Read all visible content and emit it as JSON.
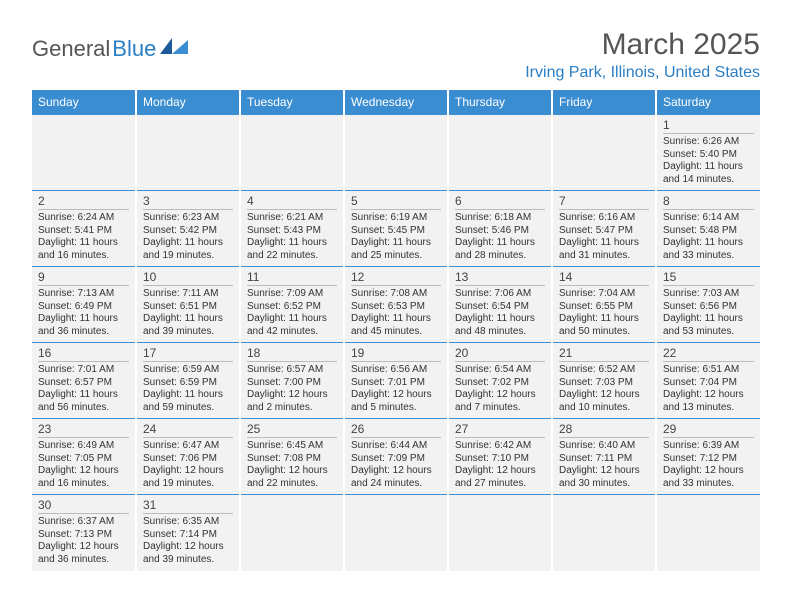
{
  "logo": {
    "general": "General",
    "blue": "Blue"
  },
  "title": "March 2025",
  "location": "Irving Park, Illinois, United States",
  "colors": {
    "header_bg": "#3a8dd0",
    "header_text": "#ffffff",
    "accent": "#2a7ec4",
    "cell_bg": "#f2f2f2",
    "text": "#333333",
    "muted": "#555555",
    "divider": "#bbbbbb"
  },
  "weekdays": [
    "Sunday",
    "Monday",
    "Tuesday",
    "Wednesday",
    "Thursday",
    "Friday",
    "Saturday"
  ],
  "layout": {
    "first_day_index": 6,
    "days_in_month": 31,
    "rows": 6
  },
  "days": {
    "1": {
      "sunrise": "6:26 AM",
      "sunset": "5:40 PM",
      "daylight": "11 hours and 14 minutes."
    },
    "2": {
      "sunrise": "6:24 AM",
      "sunset": "5:41 PM",
      "daylight": "11 hours and 16 minutes."
    },
    "3": {
      "sunrise": "6:23 AM",
      "sunset": "5:42 PM",
      "daylight": "11 hours and 19 minutes."
    },
    "4": {
      "sunrise": "6:21 AM",
      "sunset": "5:43 PM",
      "daylight": "11 hours and 22 minutes."
    },
    "5": {
      "sunrise": "6:19 AM",
      "sunset": "5:45 PM",
      "daylight": "11 hours and 25 minutes."
    },
    "6": {
      "sunrise": "6:18 AM",
      "sunset": "5:46 PM",
      "daylight": "11 hours and 28 minutes."
    },
    "7": {
      "sunrise": "6:16 AM",
      "sunset": "5:47 PM",
      "daylight": "11 hours and 31 minutes."
    },
    "8": {
      "sunrise": "6:14 AM",
      "sunset": "5:48 PM",
      "daylight": "11 hours and 33 minutes."
    },
    "9": {
      "sunrise": "7:13 AM",
      "sunset": "6:49 PM",
      "daylight": "11 hours and 36 minutes."
    },
    "10": {
      "sunrise": "7:11 AM",
      "sunset": "6:51 PM",
      "daylight": "11 hours and 39 minutes."
    },
    "11": {
      "sunrise": "7:09 AM",
      "sunset": "6:52 PM",
      "daylight": "11 hours and 42 minutes."
    },
    "12": {
      "sunrise": "7:08 AM",
      "sunset": "6:53 PM",
      "daylight": "11 hours and 45 minutes."
    },
    "13": {
      "sunrise": "7:06 AM",
      "sunset": "6:54 PM",
      "daylight": "11 hours and 48 minutes."
    },
    "14": {
      "sunrise": "7:04 AM",
      "sunset": "6:55 PM",
      "daylight": "11 hours and 50 minutes."
    },
    "15": {
      "sunrise": "7:03 AM",
      "sunset": "6:56 PM",
      "daylight": "11 hours and 53 minutes."
    },
    "16": {
      "sunrise": "7:01 AM",
      "sunset": "6:57 PM",
      "daylight": "11 hours and 56 minutes."
    },
    "17": {
      "sunrise": "6:59 AM",
      "sunset": "6:59 PM",
      "daylight": "11 hours and 59 minutes."
    },
    "18": {
      "sunrise": "6:57 AM",
      "sunset": "7:00 PM",
      "daylight": "12 hours and 2 minutes."
    },
    "19": {
      "sunrise": "6:56 AM",
      "sunset": "7:01 PM",
      "daylight": "12 hours and 5 minutes."
    },
    "20": {
      "sunrise": "6:54 AM",
      "sunset": "7:02 PM",
      "daylight": "12 hours and 7 minutes."
    },
    "21": {
      "sunrise": "6:52 AM",
      "sunset": "7:03 PM",
      "daylight": "12 hours and 10 minutes."
    },
    "22": {
      "sunrise": "6:51 AM",
      "sunset": "7:04 PM",
      "daylight": "12 hours and 13 minutes."
    },
    "23": {
      "sunrise": "6:49 AM",
      "sunset": "7:05 PM",
      "daylight": "12 hours and 16 minutes."
    },
    "24": {
      "sunrise": "6:47 AM",
      "sunset": "7:06 PM",
      "daylight": "12 hours and 19 minutes."
    },
    "25": {
      "sunrise": "6:45 AM",
      "sunset": "7:08 PM",
      "daylight": "12 hours and 22 minutes."
    },
    "26": {
      "sunrise": "6:44 AM",
      "sunset": "7:09 PM",
      "daylight": "12 hours and 24 minutes."
    },
    "27": {
      "sunrise": "6:42 AM",
      "sunset": "7:10 PM",
      "daylight": "12 hours and 27 minutes."
    },
    "28": {
      "sunrise": "6:40 AM",
      "sunset": "7:11 PM",
      "daylight": "12 hours and 30 minutes."
    },
    "29": {
      "sunrise": "6:39 AM",
      "sunset": "7:12 PM",
      "daylight": "12 hours and 33 minutes."
    },
    "30": {
      "sunrise": "6:37 AM",
      "sunset": "7:13 PM",
      "daylight": "12 hours and 36 minutes."
    },
    "31": {
      "sunrise": "6:35 AM",
      "sunset": "7:14 PM",
      "daylight": "12 hours and 39 minutes."
    }
  },
  "labels": {
    "sunrise_prefix": "Sunrise: ",
    "sunset_prefix": "Sunset: ",
    "daylight_prefix": "Daylight: "
  }
}
